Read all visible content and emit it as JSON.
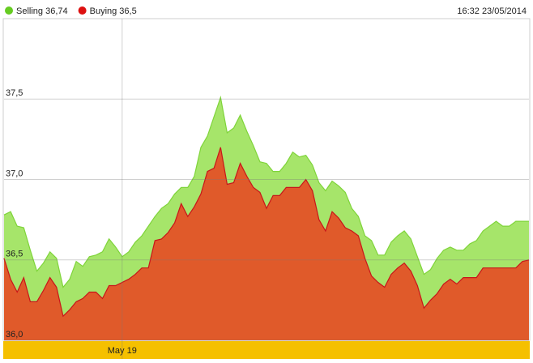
{
  "chart_data": {
    "type": "area",
    "timestamp": "16:32 23/05/2014",
    "ylim": [
      36.0,
      38.0
    ],
    "yticks": [
      {
        "value": 36.0,
        "label": "36,0"
      },
      {
        "value": 36.5,
        "label": "36,5"
      },
      {
        "value": 37.0,
        "label": "37,0"
      },
      {
        "value": 37.5,
        "label": "37,5"
      }
    ],
    "grid": true,
    "categories": [
      null,
      null,
      null,
      null,
      null,
      null,
      null,
      null,
      null,
      null,
      null,
      null,
      null,
      null,
      null,
      null,
      null,
      null,
      "May 19",
      null,
      null,
      null,
      null,
      null,
      null,
      null,
      null,
      null,
      null,
      null,
      null,
      null,
      null,
      null,
      null,
      null,
      null,
      null,
      null,
      null,
      null,
      null,
      null,
      null,
      null,
      null,
      null,
      null,
      null,
      null,
      null,
      null,
      null,
      null,
      null,
      null,
      null,
      null,
      null,
      null,
      null,
      null,
      null,
      null,
      null,
      null,
      null,
      null,
      null,
      null,
      null,
      null,
      null,
      null,
      null,
      null,
      null,
      null,
      null,
      null,
      null
    ],
    "series": [
      {
        "name": "Selling 36,74",
        "color": "#66cc22",
        "fill": "#a6e56a",
        "stroke": "#7fd43a",
        "values": [
          36.78,
          36.8,
          36.71,
          36.7,
          36.56,
          36.43,
          36.48,
          36.55,
          36.51,
          36.33,
          36.38,
          36.49,
          36.46,
          36.52,
          36.53,
          36.55,
          36.63,
          36.58,
          36.52,
          36.55,
          36.61,
          36.65,
          36.71,
          36.77,
          36.82,
          36.85,
          36.91,
          36.95,
          36.95,
          37.02,
          37.2,
          37.27,
          37.39,
          37.51,
          37.29,
          37.32,
          37.4,
          37.3,
          37.21,
          37.11,
          37.1,
          37.05,
          37.05,
          37.1,
          37.17,
          37.14,
          37.15,
          37.09,
          36.98,
          36.93,
          36.99,
          36.96,
          36.92,
          36.82,
          36.77,
          36.65,
          36.62,
          36.53,
          36.53,
          36.61,
          36.65,
          36.68,
          36.63,
          36.52,
          36.41,
          36.44,
          36.51,
          36.56,
          36.58,
          36.56,
          36.56,
          36.6,
          36.62,
          36.68,
          36.71,
          36.74,
          36.71,
          36.71,
          36.74,
          36.74,
          36.74
        ]
      },
      {
        "name": "Buying 36,5",
        "color": "#dd1111",
        "fill": "#e05a2a",
        "stroke": "#c8161a",
        "values": [
          36.51,
          36.38,
          36.3,
          36.39,
          36.24,
          36.24,
          36.31,
          36.39,
          36.33,
          36.15,
          36.19,
          36.24,
          36.26,
          36.3,
          36.3,
          36.26,
          36.34,
          36.34,
          36.36,
          36.38,
          36.41,
          36.45,
          36.45,
          36.62,
          36.63,
          36.67,
          36.73,
          36.85,
          36.77,
          36.83,
          36.91,
          37.05,
          37.07,
          37.2,
          36.97,
          36.98,
          37.1,
          37.02,
          36.95,
          36.92,
          36.82,
          36.9,
          36.9,
          36.95,
          36.95,
          36.95,
          37.0,
          36.93,
          36.75,
          36.68,
          36.8,
          36.76,
          36.7,
          36.68,
          36.65,
          36.51,
          36.4,
          36.36,
          36.33,
          36.41,
          36.45,
          36.48,
          36.43,
          36.34,
          36.2,
          36.25,
          36.29,
          36.35,
          36.38,
          36.35,
          36.39,
          36.39,
          36.39,
          36.45,
          36.45,
          36.45,
          36.45,
          36.45,
          36.45,
          36.49,
          36.5
        ]
      }
    ]
  }
}
